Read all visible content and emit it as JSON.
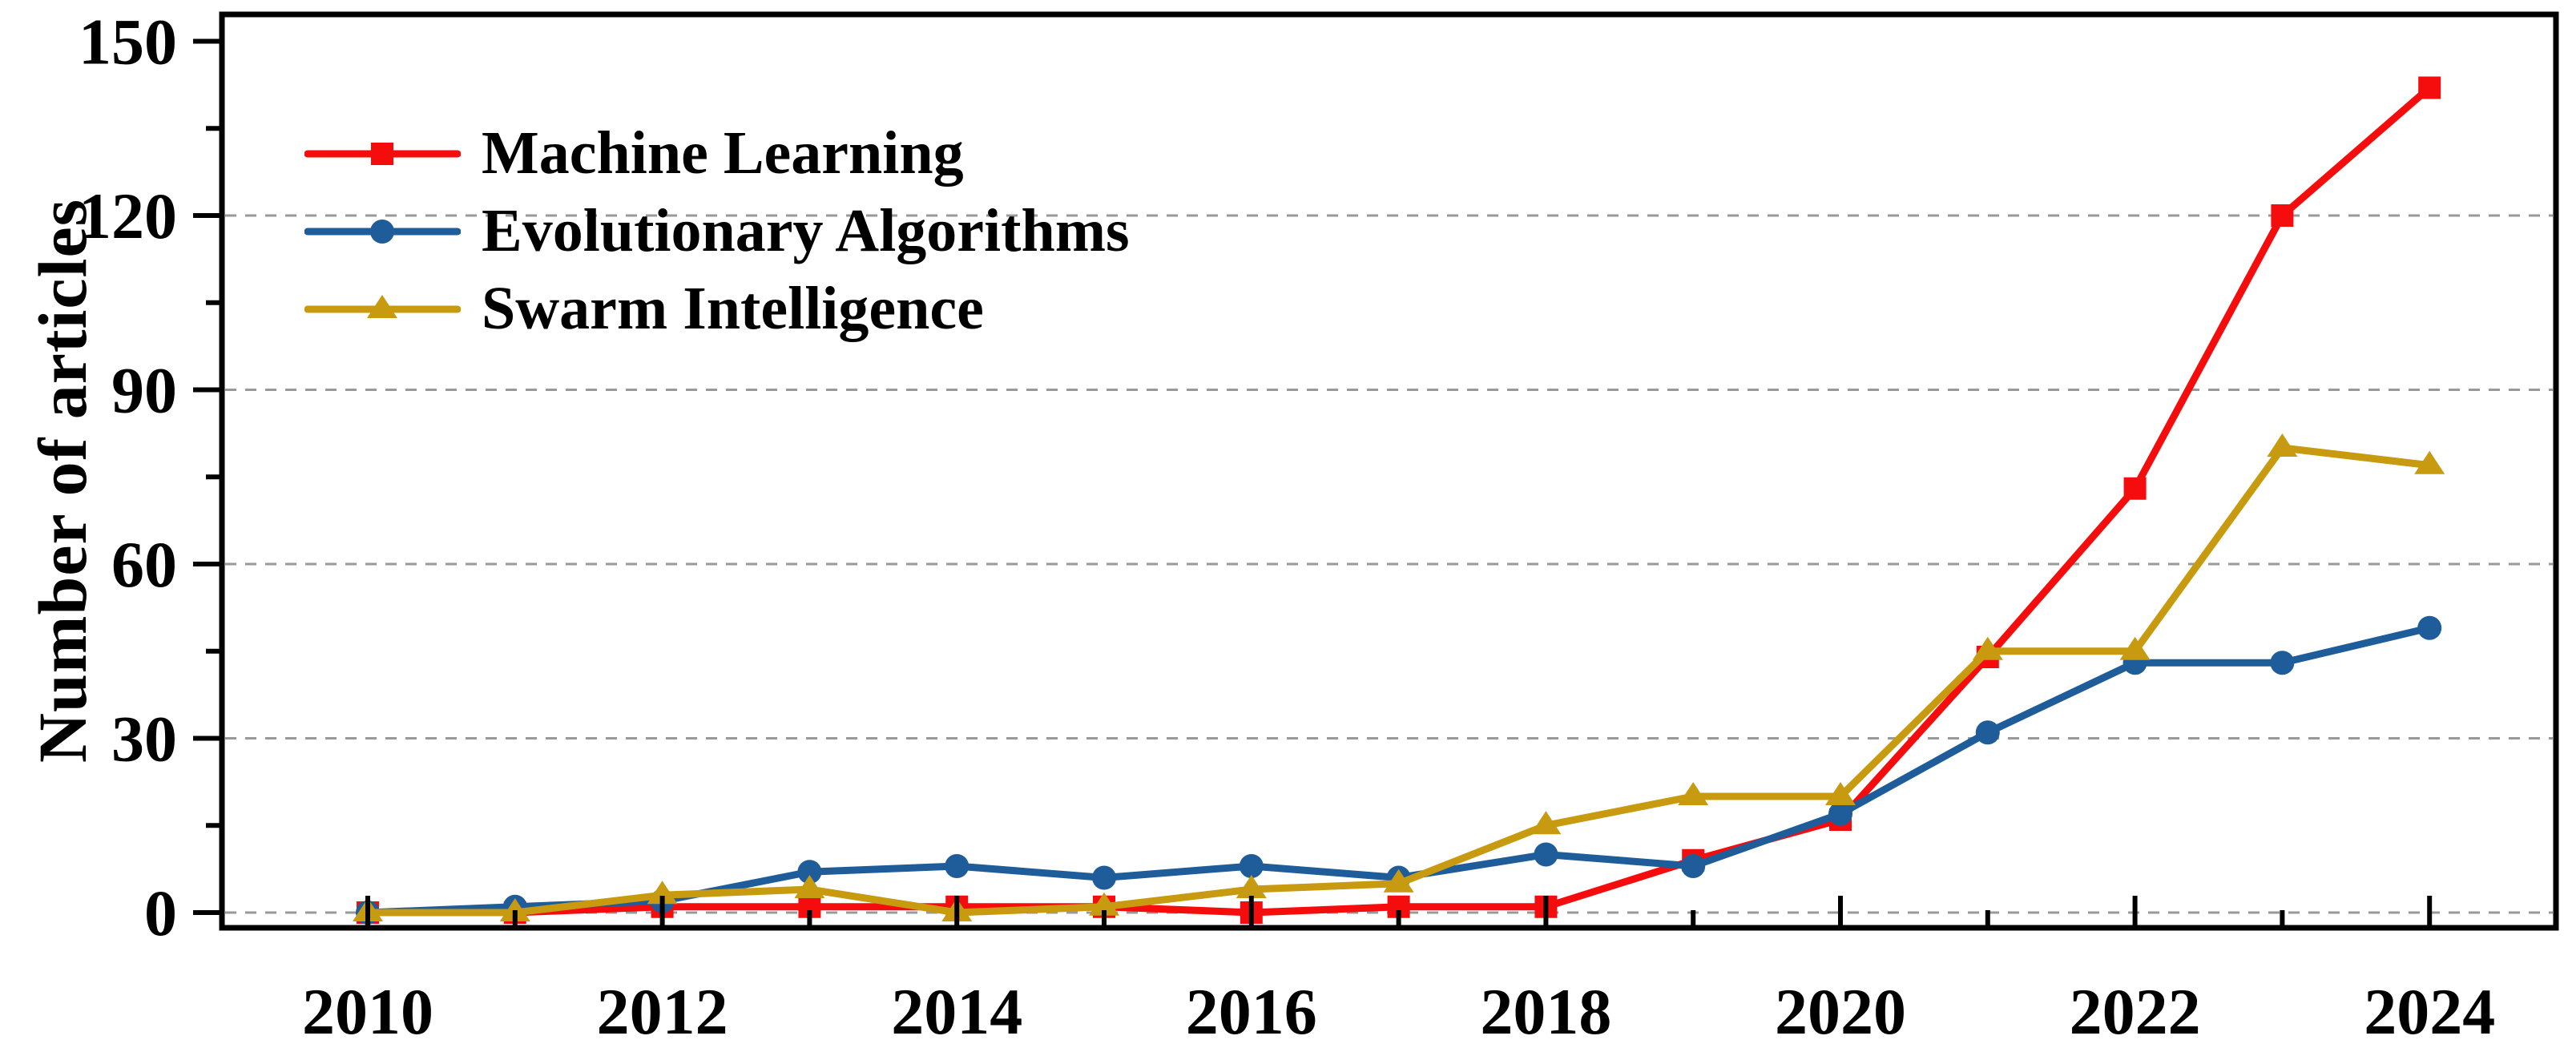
{
  "figure": {
    "background": "#ffffff",
    "frame_color": "#000000",
    "gridline_color": "#999999",
    "text_color": "#000000"
  },
  "chart_data": {
    "type": "line",
    "title": "",
    "xlabel": "",
    "ylabel": "Number of articles",
    "x": [
      2010,
      2011,
      2012,
      2013,
      2014,
      2015,
      2016,
      2017,
      2018,
      2019,
      2020,
      2021,
      2022,
      2023,
      2024
    ],
    "x_major_ticks": [
      2010,
      2012,
      2014,
      2016,
      2018,
      2020,
      2022,
      2024
    ],
    "x_major_tick_labels": [
      "2010",
      "2012",
      "2014",
      "2016",
      "2018",
      "2020",
      "2022",
      "2024"
    ],
    "x_minor_ticks": [
      2011,
      2013,
      2015,
      2017,
      2019,
      2021,
      2023
    ],
    "y_major_ticks": [
      0,
      30,
      60,
      90,
      120,
      150
    ],
    "y_major_tick_labels": [
      "0",
      "30",
      "60",
      "90",
      "120",
      "150"
    ],
    "y_minor_ticks": [
      15,
      45,
      75,
      105,
      135
    ],
    "ylim": [
      0,
      150
    ],
    "xlim": [
      2009,
      2025
    ],
    "grid": "horizontal-dashed",
    "legend_position": "top-left-inside",
    "series": [
      {
        "name": "Machine Learning",
        "color": "#f50d0d",
        "marker": "square",
        "values": [
          0,
          0,
          1,
          1,
          1,
          1,
          0,
          1,
          1,
          9,
          16,
          44,
          73,
          120,
          142
        ]
      },
      {
        "name": "Evolutionary Algorithms",
        "color": "#1e5c9a",
        "marker": "circle",
        "values": [
          0,
          1,
          2,
          7,
          8,
          6,
          8,
          6,
          10,
          8,
          17,
          31,
          43,
          43,
          49
        ]
      },
      {
        "name": "Swarm Intelligence",
        "color": "#c79a10",
        "marker": "triangle",
        "values": [
          0,
          0,
          3,
          4,
          0,
          1,
          4,
          5,
          15,
          20,
          20,
          45,
          45,
          80,
          77
        ]
      }
    ]
  }
}
